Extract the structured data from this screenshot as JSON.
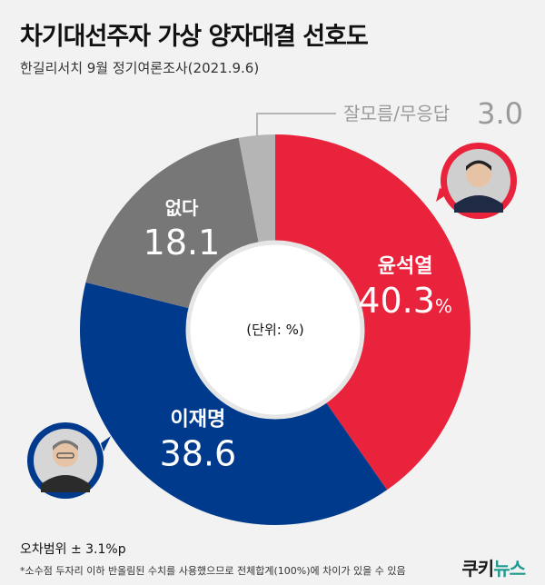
{
  "title": "차기대선주자 가상 양자대결 선호도",
  "subtitle": "한길리서치 9월 정기여론조사(2021.9.6)",
  "chart_data": {
    "type": "pie",
    "donut": true,
    "center_label": "(단위: %)",
    "slices": [
      {
        "label": "윤석열",
        "value": 40.3,
        "display": "40.3",
        "unit": "%",
        "color": "#e8233b"
      },
      {
        "label": "이재명",
        "value": 38.6,
        "display": "38.6",
        "unit": "",
        "color": "#003a8c"
      },
      {
        "label": "없다",
        "value": 18.1,
        "display": "18.1",
        "unit": "",
        "color": "#777777"
      },
      {
        "label": "잘모름/무응답",
        "value": 3.0,
        "display": "3.0",
        "unit": "",
        "color": "#b5b5b5"
      }
    ]
  },
  "notes": {
    "margin_of_error": "오차범위 ± 3.1%p",
    "footnote": "*소수점 두자리 이하 반올림된 수치를 사용했으므로 전체합계(100%)에 차이가 있을 수 있음"
  },
  "brand": {
    "part1": "쿠키",
    "part2": "뉴스"
  }
}
